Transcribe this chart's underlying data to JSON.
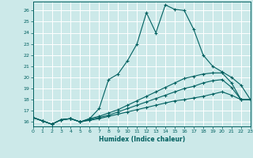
{
  "xlabel": "Humidex (Indice chaleur)",
  "ylabel": "",
  "xlim": [
    0,
    23
  ],
  "ylim": [
    15.6,
    26.8
  ],
  "xticks": [
    0,
    1,
    2,
    3,
    4,
    5,
    6,
    7,
    8,
    9,
    10,
    11,
    12,
    13,
    14,
    15,
    16,
    17,
    18,
    19,
    20,
    21,
    22,
    23
  ],
  "yticks": [
    16,
    17,
    18,
    19,
    20,
    21,
    22,
    23,
    24,
    25,
    26
  ],
  "bg_color": "#cce9e9",
  "line_color": "#006060",
  "grid_color": "#ffffff",
  "lines": [
    {
      "x": [
        0,
        1,
        2,
        3,
        4,
        5,
        6,
        7,
        8,
        9,
        10,
        11,
        12,
        13,
        14,
        15,
        16,
        17,
        18,
        19,
        20,
        21,
        22,
        23
      ],
      "y": [
        16.4,
        16.1,
        15.8,
        16.2,
        16.3,
        16.0,
        16.3,
        17.2,
        19.8,
        20.3,
        21.5,
        23.0,
        25.8,
        24.0,
        26.5,
        26.1,
        26.0,
        24.3,
        22.0,
        21.0,
        20.5,
        20.0,
        19.3,
        18.0
      ]
    },
    {
      "x": [
        0,
        1,
        2,
        3,
        4,
        5,
        6,
        7,
        8,
        9,
        10,
        11,
        12,
        13,
        14,
        15,
        16,
        17,
        18,
        19,
        20,
        21,
        22,
        23
      ],
      "y": [
        16.4,
        16.1,
        15.8,
        16.2,
        16.3,
        16.0,
        16.3,
        16.5,
        16.8,
        17.1,
        17.5,
        17.9,
        18.3,
        18.7,
        19.1,
        19.5,
        19.9,
        20.1,
        20.3,
        20.4,
        20.4,
        19.5,
        18.0,
        18.0
      ]
    },
    {
      "x": [
        0,
        1,
        2,
        3,
        4,
        5,
        6,
        7,
        8,
        9,
        10,
        11,
        12,
        13,
        14,
        15,
        16,
        17,
        18,
        19,
        20,
        21,
        22,
        23
      ],
      "y": [
        16.4,
        16.1,
        15.8,
        16.2,
        16.3,
        16.0,
        16.2,
        16.4,
        16.6,
        16.9,
        17.2,
        17.5,
        17.8,
        18.1,
        18.4,
        18.7,
        19.0,
        19.2,
        19.5,
        19.7,
        19.8,
        19.1,
        18.0,
        18.0
      ]
    },
    {
      "x": [
        0,
        1,
        2,
        3,
        4,
        5,
        6,
        7,
        8,
        9,
        10,
        11,
        12,
        13,
        14,
        15,
        16,
        17,
        18,
        19,
        20,
        21,
        22,
        23
      ],
      "y": [
        16.4,
        16.1,
        15.8,
        16.2,
        16.3,
        16.0,
        16.15,
        16.3,
        16.5,
        16.7,
        16.9,
        17.1,
        17.3,
        17.5,
        17.7,
        17.9,
        18.0,
        18.15,
        18.3,
        18.5,
        18.7,
        18.4,
        18.0,
        18.0
      ]
    }
  ]
}
